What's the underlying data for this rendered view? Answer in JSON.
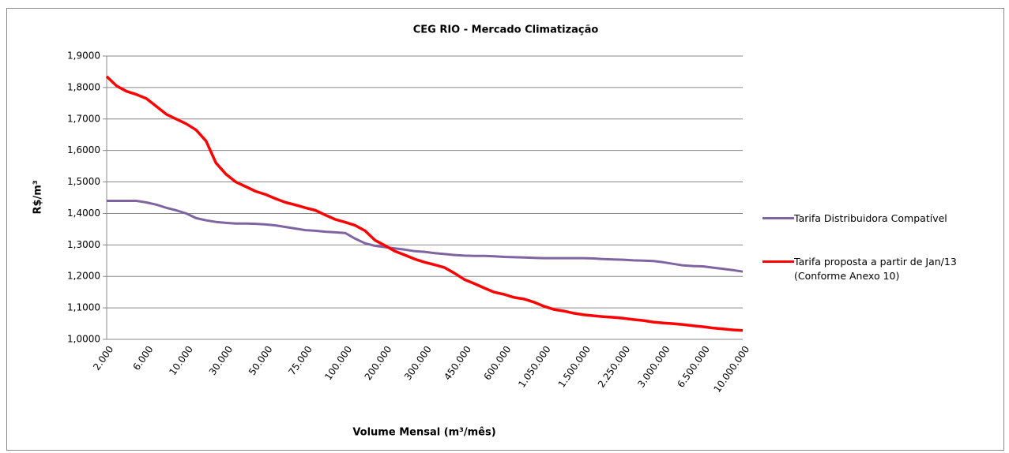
{
  "chart_data": {
    "type": "line",
    "title": "CEG RIO - Mercado Climatização",
    "x_label": "Volume Mensal  (m³/mês)",
    "y_label": "R$/m³",
    "categories": [
      "2.000",
      null,
      null,
      null,
      "6.000",
      null,
      null,
      null,
      "10.000",
      null,
      null,
      null,
      "30.000",
      null,
      null,
      null,
      "50.000",
      null,
      null,
      null,
      "75.000",
      null,
      null,
      null,
      "100.000",
      null,
      null,
      null,
      "200.000",
      null,
      null,
      null,
      "300.000",
      null,
      null,
      null,
      "450.000",
      null,
      null,
      null,
      "600.000",
      null,
      null,
      null,
      "1.050.000",
      null,
      null,
      null,
      "1.500.000",
      null,
      null,
      null,
      "2.250.000",
      null,
      null,
      null,
      "3.000.000",
      null,
      null,
      null,
      "6.500.000",
      null,
      null,
      null,
      "10.000.000"
    ],
    "series": [
      {
        "name": "Tarifa Distribuidora Compatível",
        "color": "#8064a2",
        "values": [
          1.44,
          1.44,
          1.44,
          1.44,
          1.435,
          1.428,
          1.418,
          1.41,
          1.4,
          1.385,
          1.378,
          1.373,
          1.37,
          1.368,
          1.368,
          1.367,
          1.365,
          1.362,
          1.357,
          1.352,
          1.347,
          1.345,
          1.342,
          1.34,
          1.338,
          1.32,
          1.305,
          1.297,
          1.293,
          1.289,
          1.285,
          1.28,
          1.278,
          1.274,
          1.271,
          1.268,
          1.266,
          1.265,
          1.265,
          1.264,
          1.262,
          1.261,
          1.26,
          1.259,
          1.258,
          1.258,
          1.258,
          1.258,
          1.258,
          1.257,
          1.255,
          1.254,
          1.253,
          1.251,
          1.25,
          1.249,
          1.245,
          1.24,
          1.235,
          1.233,
          1.232,
          1.228,
          1.224,
          1.22,
          1.215
        ]
      },
      {
        "name": "Tarifa proposta a partir de Jan/13 (Conforme Anexo 10)",
        "color": "#ff0000",
        "values": [
          1.835,
          1.805,
          1.788,
          1.778,
          1.765,
          1.74,
          1.715,
          1.7,
          1.685,
          1.665,
          1.63,
          1.56,
          1.525,
          1.5,
          1.485,
          1.47,
          1.46,
          1.447,
          1.435,
          1.427,
          1.418,
          1.41,
          1.395,
          1.381,
          1.372,
          1.362,
          1.345,
          1.315,
          1.298,
          1.28,
          1.268,
          1.255,
          1.245,
          1.237,
          1.228,
          1.21,
          1.19,
          1.177,
          1.163,
          1.15,
          1.143,
          1.133,
          1.128,
          1.118,
          1.105,
          1.095,
          1.09,
          1.083,
          1.078,
          1.075,
          1.072,
          1.07,
          1.067,
          1.063,
          1.06,
          1.055,
          1.052,
          1.05,
          1.047,
          1.043,
          1.04,
          1.036,
          1.033,
          1.03,
          1.028
        ]
      }
    ],
    "ylim": [
      1.0,
      1.9
    ],
    "yticks": [
      {
        "value": 1.0,
        "label": "1,0000"
      },
      {
        "value": 1.1,
        "label": "1,1000"
      },
      {
        "value": 1.2,
        "label": "1,2000"
      },
      {
        "value": 1.3,
        "label": "1,3000"
      },
      {
        "value": 1.4,
        "label": "1,4000"
      },
      {
        "value": 1.5,
        "label": "1,5000"
      },
      {
        "value": 1.6,
        "label": "1,6000"
      },
      {
        "value": 1.7,
        "label": "1,7000"
      },
      {
        "value": 1.8,
        "label": "1,8000"
      },
      {
        "value": 1.9,
        "label": "1,9000"
      }
    ],
    "grid": true,
    "legend": "right"
  }
}
